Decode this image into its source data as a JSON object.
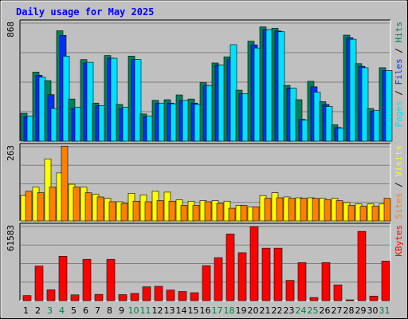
{
  "chart_data": {
    "type": "bar",
    "title": "Daily usage for May 2025",
    "categories": [
      "1",
      "2",
      "3",
      "4",
      "5",
      "6",
      "7",
      "8",
      "9",
      "10",
      "11",
      "12",
      "13",
      "14",
      "15",
      "16",
      "17",
      "18",
      "19",
      "20",
      "21",
      "22",
      "23",
      "24",
      "25",
      "26",
      "27",
      "28",
      "29",
      "30",
      "31"
    ],
    "weekend_days": [
      "3",
      "4",
      "10",
      "11",
      "17",
      "18",
      "24",
      "25",
      "31"
    ],
    "panels": [
      {
        "name": "hits-files-pages",
        "ymax_label": "868",
        "ymax": 868,
        "axis_label_parts": [
          {
            "text": "Pages",
            "color": "#00e0ff"
          },
          {
            "text": " / ",
            "color": "#000000"
          },
          {
            "text": "Files",
            "color": "#0030ff"
          },
          {
            "text": " / ",
            "color": "#000000"
          },
          {
            "text": "Hits",
            "color": "#008060"
          }
        ],
        "series": [
          {
            "name": "Hits",
            "color": "#00805c",
            "values": [
              205,
              508,
              445,
              812,
              310,
              600,
              280,
              630,
              270,
              625,
              200,
              300,
              305,
              340,
              310,
              430,
              575,
              620,
              375,
              735,
              840,
              830,
              410,
              305,
              440,
              290,
              120,
              780,
              570,
              240,
              540
            ]
          },
          {
            "name": "Files",
            "color": "#0030ff",
            "values": [
              180,
              484,
              342,
              778,
              240,
              576,
              260,
              610,
              240,
              600,
              180,
              278,
              280,
              300,
              280,
              410,
              560,
              600,
              350,
              708,
              820,
              810,
              390,
              160,
              400,
              270,
              100,
              760,
              550,
              220,
              520
            ]
          },
          {
            "name": "Pages",
            "color": "#00e0ff",
            "values": [
              185,
              470,
              240,
              625,
              250,
              580,
              260,
              610,
              250,
              600,
              185,
              280,
              275,
              300,
              270,
              410,
              560,
              710,
              350,
              685,
              820,
              805,
              390,
              155,
              360,
              255,
              95,
              750,
              540,
              225,
              520
            ]
          }
        ]
      },
      {
        "name": "visits-sites",
        "ymax_label": "263",
        "ymax": 263,
        "axis_label_parts": [
          {
            "text": "Sites",
            "color": "#ff8000"
          },
          {
            "text": " / ",
            "color": "#000000"
          },
          {
            "text": "Visits",
            "color": "#ffff00"
          }
        ],
        "series": [
          {
            "name": "Visits",
            "color": "#ffff00",
            "values": [
              90,
              120,
              220,
              170,
              130,
              120,
              95,
              80,
              68,
              98,
              92,
              105,
              102,
              75,
              70,
              72,
              72,
              70,
              55,
              50,
              90,
              100,
              85,
              82,
              82,
              80,
              80,
              65,
              60,
              60,
              60
            ]
          },
          {
            "name": "Sites",
            "color": "#ff8000",
            "values": [
              105,
              100,
              120,
              265,
              120,
              100,
              85,
              68,
              62,
              70,
              68,
              72,
              70,
              55,
              55,
              68,
              62,
              45,
              55,
              50,
              80,
              82,
              80,
              80,
              80,
              75,
              72,
              55,
              52,
              52,
              80
            ]
          }
        ]
      },
      {
        "name": "kbytes",
        "ymax_label": "61583",
        "ymax": 61583,
        "axis_label_parts": [
          {
            "text": "KBytes",
            "color": "#ff0000"
          }
        ],
        "series": [
          {
            "name": "KBytes",
            "color": "#ff0000",
            "values": [
              4200,
              28700,
              9000,
              36800,
              4800,
              34300,
              5200,
              34300,
              5000,
              6000,
              11500,
              11900,
              8800,
              7600,
              6600,
              29100,
              35700,
              55300,
              39800,
              61500,
              43600,
              43600,
              16800,
              31600,
              2600,
              31600,
              13100,
              300,
              57500,
              3800,
              32800
            ]
          }
        ]
      }
    ]
  }
}
